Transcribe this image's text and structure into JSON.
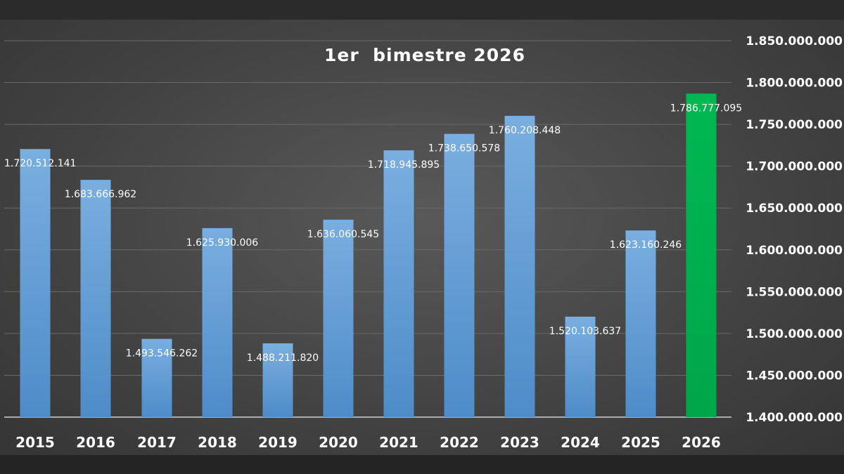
{
  "chart_data": {
    "type": "bar",
    "title": "1er  bimestre 2026",
    "xlabel": "",
    "ylabel": "",
    "categories": [
      "2015",
      "2016",
      "2017",
      "2018",
      "2019",
      "2020",
      "2021",
      "2022",
      "2023",
      "2024",
      "2025",
      "2026"
    ],
    "values": [
      1720512141,
      1683666962,
      1493546262,
      1625930006,
      1488211820,
      1636060545,
      1718945895,
      1738650578,
      1760208448,
      1520103637,
      1623160246,
      1786777095
    ],
    "data_labels": [
      "1.720.512.141",
      "1.683.666.962",
      "1.493.546.262",
      "1.625.930.006",
      "1.488.211.820",
      "1.636.060.545",
      "1.718.945.895",
      "1.738.650.578",
      "1.760.208.448",
      "1.520.103.637",
      "1.623.160.246",
      "1.786.777.095"
    ],
    "ylim": [
      1400000000,
      1850000000
    ],
    "yticks": [
      1400000000,
      1450000000,
      1500000000,
      1550000000,
      1600000000,
      1650000000,
      1700000000,
      1750000000,
      1800000000,
      1850000000
    ],
    "ytick_labels": [
      "1.400.000.000",
      "1.450.000.000",
      "1.500.000.000",
      "1.550.000.000",
      "1.600.000.000",
      "1.650.000.000",
      "1.700.000.000",
      "1.750.000.000",
      "1.800.000.000",
      "1.850.000.000"
    ],
    "y_axis_side": "right",
    "grid": true,
    "colors": {
      "bar": "#5b9bd5",
      "highlight": "#00b050",
      "highlight_index": 11,
      "background": "#4a4a4a",
      "text": "#ffffff"
    }
  }
}
